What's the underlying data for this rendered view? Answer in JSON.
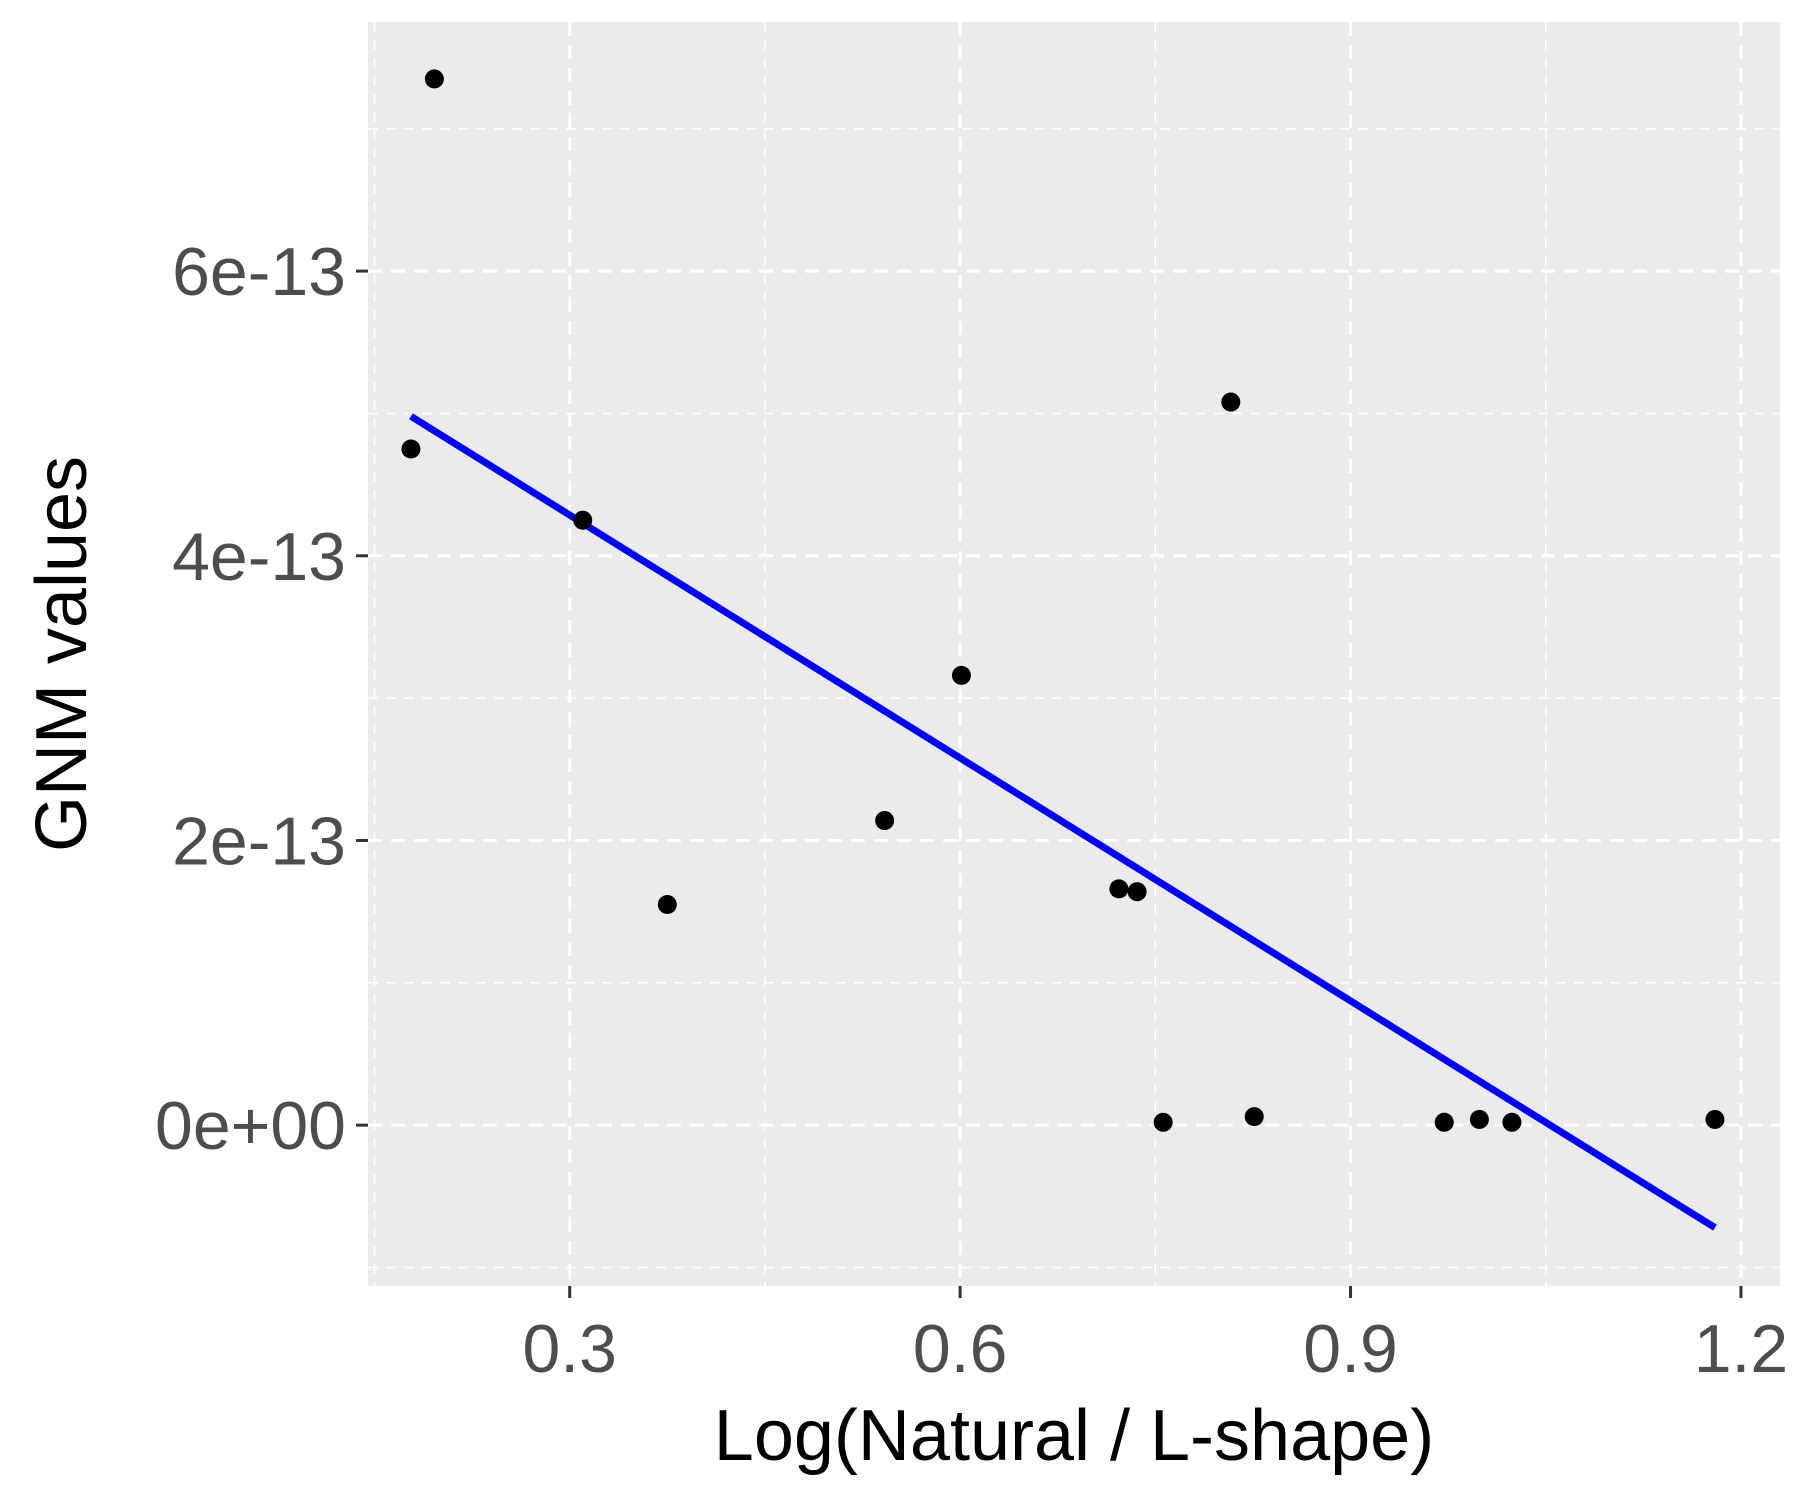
{
  "chart_data": {
    "type": "scatter",
    "title": "",
    "xlabel": "Log(Natural / L-shape)",
    "ylabel": "GNM values",
    "xlim": [
      0.145,
      1.23
    ],
    "ylim": [
      -1.13e-13,
      7.75e-13
    ],
    "x_ticks": [
      0.3,
      0.6,
      0.9,
      1.2
    ],
    "x_tick_labels": [
      "0.3",
      "0.6",
      "0.9",
      "1.2"
    ],
    "x_minor_ticks": [
      0.15,
      0.45,
      0.75,
      1.05
    ],
    "y_ticks": [
      0,
      2e-13,
      4e-13,
      6e-13
    ],
    "y_tick_labels": [
      "0e+00",
      "2e-13",
      "4e-13",
      "6e-13"
    ],
    "y_minor_ticks": [
      -1e-13,
      1e-13,
      3e-13,
      5e-13,
      7e-13
    ],
    "grid": true,
    "legend": "none",
    "points": [
      {
        "x": 0.196,
        "y": 7.35e-13
      },
      {
        "x": 0.178,
        "y": 4.75e-13
      },
      {
        "x": 0.31,
        "y": 4.25e-13
      },
      {
        "x": 0.375,
        "y": 1.55e-13
      },
      {
        "x": 0.542,
        "y": 2.14e-13
      },
      {
        "x": 0.601,
        "y": 3.16e-13
      },
      {
        "x": 0.722,
        "y": 1.66e-13
      },
      {
        "x": 0.736,
        "y": 1.64e-13
      },
      {
        "x": 0.756,
        "y": 2e-15
      },
      {
        "x": 0.808,
        "y": 5.08e-13
      },
      {
        "x": 0.826,
        "y": 6e-15
      },
      {
        "x": 0.972,
        "y": 2e-15
      },
      {
        "x": 0.999,
        "y": 4e-15
      },
      {
        "x": 1.024,
        "y": 2e-15
      },
      {
        "x": 1.18,
        "y": 4e-15
      }
    ],
    "fit_line": {
      "x": [
        0.178,
        1.18
      ],
      "y": [
        4.98e-13,
        -7.2e-14
      ]
    },
    "colors": {
      "panel": "#ebebeb",
      "grid": "#ffffff",
      "points": "#000000",
      "fit_line": "#0000ff",
      "tick_text": "#4d4d4d"
    }
  }
}
